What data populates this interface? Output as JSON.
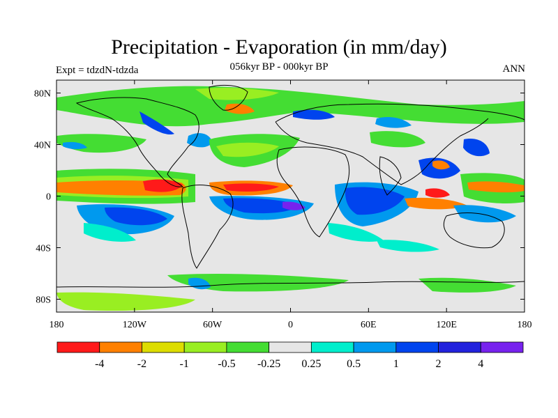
{
  "header": {
    "title": "Precipitation - Evaporation (in mm/day)",
    "subtitle": "056kyr BP - 000kyr BP",
    "left_label": "Expt = tdzdN-tdzda",
    "right_label": "ANN"
  },
  "map": {
    "lon_range": [
      -180,
      180
    ],
    "lat_range": [
      -90,
      90
    ],
    "lat_ticks": [
      {
        "value": 80,
        "label": "80N"
      },
      {
        "value": 40,
        "label": "40N"
      },
      {
        "value": 0,
        "label": "0"
      },
      {
        "value": -40,
        "label": "40S"
      },
      {
        "value": -80,
        "label": "80S"
      }
    ],
    "lon_ticks": [
      {
        "value": -180,
        "label": "180"
      },
      {
        "value": -120,
        "label": "120W"
      },
      {
        "value": -60,
        "label": "60W"
      },
      {
        "value": 0,
        "label": "0"
      },
      {
        "value": 60,
        "label": "60E"
      },
      {
        "value": 120,
        "label": "120E"
      },
      {
        "value": 180,
        "label": "180"
      }
    ],
    "background_color": "#e6e6e6",
    "coastline_color": "#000000"
  },
  "colorbar": {
    "colors": [
      "#ff1a1a",
      "#ff8000",
      "#dddd00",
      "#99ee22",
      "#44dd33",
      "#e6e6e6",
      "#00eecc",
      "#0099ee",
      "#0044ee",
      "#2222dd",
      "#7722ee"
    ],
    "labels": [
      "-4",
      "-2",
      "-1",
      "-0.5",
      "-0.25",
      "0.25",
      "0.5",
      "1",
      "2",
      "4"
    ]
  }
}
